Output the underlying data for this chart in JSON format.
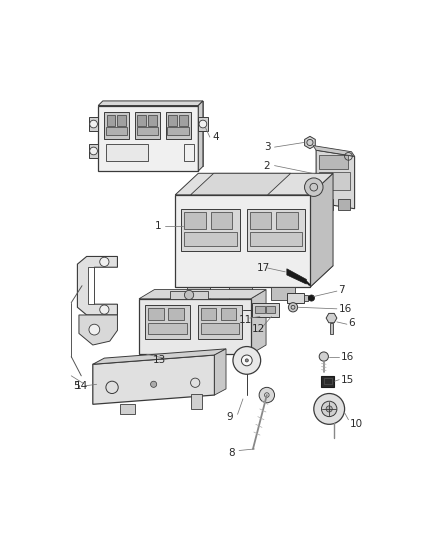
{
  "background_color": "#ffffff",
  "line_color": "#3a3a3a",
  "label_color": "#2a2a2a",
  "fig_width": 4.38,
  "fig_height": 5.33,
  "dpi": 100
}
